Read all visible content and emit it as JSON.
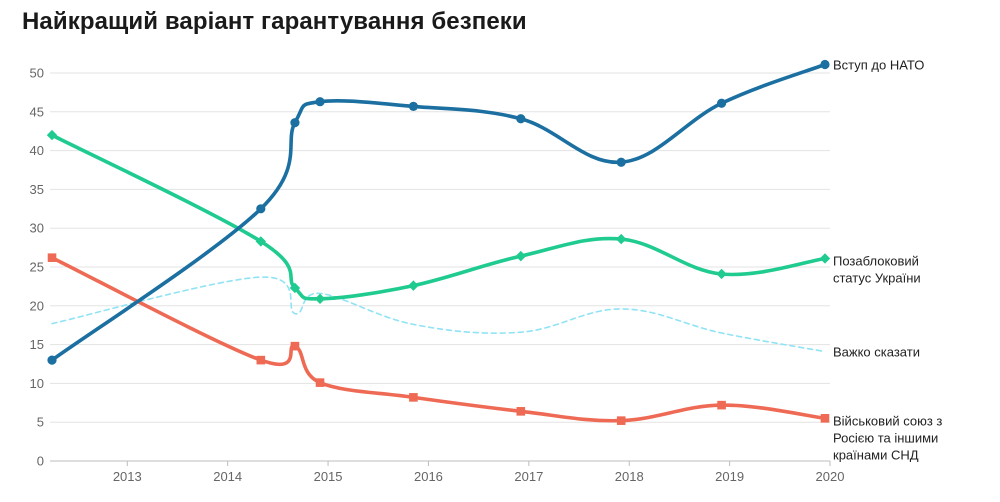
{
  "chart_data": {
    "type": "line",
    "title": "Найкращий варіант гарантування безпеки",
    "xlabel": "",
    "ylabel": "",
    "xlim": [
      2012.23,
      2020.0
    ],
    "ylim": [
      0,
      50
    ],
    "y_ticks": [
      "0",
      "5",
      "10",
      "15",
      "20",
      "25",
      "30",
      "35",
      "40",
      "45",
      "50"
    ],
    "x_ticks": [
      "2013",
      "2014",
      "2015",
      "2016",
      "2017",
      "2018",
      "2019",
      "2020"
    ],
    "grid": true,
    "series": [
      {
        "name": "Вступ до НАТО",
        "label_lines": [
          "Вступ до НАТО"
        ],
        "color": "#1b6fa1",
        "marker": "circle",
        "style": "solid",
        "points": [
          {
            "x": 2012.25,
            "y": 13.0
          },
          {
            "x": 2014.33,
            "y": 32.5
          },
          {
            "x": 2014.67,
            "y": 43.6
          },
          {
            "x": 2014.92,
            "y": 46.3
          },
          {
            "x": 2015.85,
            "y": 45.7
          },
          {
            "x": 2016.92,
            "y": 44.1
          },
          {
            "x": 2017.92,
            "y": 38.5
          },
          {
            "x": 2018.92,
            "y": 46.1
          },
          {
            "x": 2019.95,
            "y": 51.1
          }
        ]
      },
      {
        "name": "Позаблоковий статус України",
        "label_lines": [
          "Позаблоковий",
          "статус України"
        ],
        "color": "#1fcb8f",
        "marker": "diamond",
        "style": "solid",
        "points": [
          {
            "x": 2012.25,
            "y": 42.0
          },
          {
            "x": 2014.33,
            "y": 28.3
          },
          {
            "x": 2014.67,
            "y": 22.3
          },
          {
            "x": 2014.92,
            "y": 20.9
          },
          {
            "x": 2015.85,
            "y": 22.6
          },
          {
            "x": 2016.92,
            "y": 26.4
          },
          {
            "x": 2017.92,
            "y": 28.6
          },
          {
            "x": 2018.92,
            "y": 24.1
          },
          {
            "x": 2019.95,
            "y": 26.1
          }
        ]
      },
      {
        "name": "Важко сказати",
        "label_lines": [
          "Важко сказати"
        ],
        "color": "#8fe3f5",
        "marker": "none",
        "style": "dashed",
        "points": [
          {
            "x": 2012.25,
            "y": 17.7
          },
          {
            "x": 2014.33,
            "y": 23.7
          },
          {
            "x": 2014.67,
            "y": 19.0
          },
          {
            "x": 2014.92,
            "y": 21.6
          },
          {
            "x": 2015.85,
            "y": 17.6
          },
          {
            "x": 2016.92,
            "y": 16.6
          },
          {
            "x": 2017.92,
            "y": 19.6
          },
          {
            "x": 2018.92,
            "y": 16.5
          },
          {
            "x": 2019.95,
            "y": 14.1
          }
        ]
      },
      {
        "name": "Військовий союз з Росією та іншими країнами СНД",
        "label_lines": [
          "Військовий союз з",
          "Росією та іншими",
          "країнами СНД"
        ],
        "color": "#ef6a55",
        "marker": "square",
        "style": "solid",
        "points": [
          {
            "x": 2012.25,
            "y": 26.2
          },
          {
            "x": 2014.33,
            "y": 13.0
          },
          {
            "x": 2014.67,
            "y": 14.8
          },
          {
            "x": 2014.92,
            "y": 10.1
          },
          {
            "x": 2015.85,
            "y": 8.2
          },
          {
            "x": 2016.92,
            "y": 6.4
          },
          {
            "x": 2017.92,
            "y": 5.2
          },
          {
            "x": 2018.92,
            "y": 7.2
          },
          {
            "x": 2019.95,
            "y": 5.5
          }
        ]
      }
    ]
  }
}
